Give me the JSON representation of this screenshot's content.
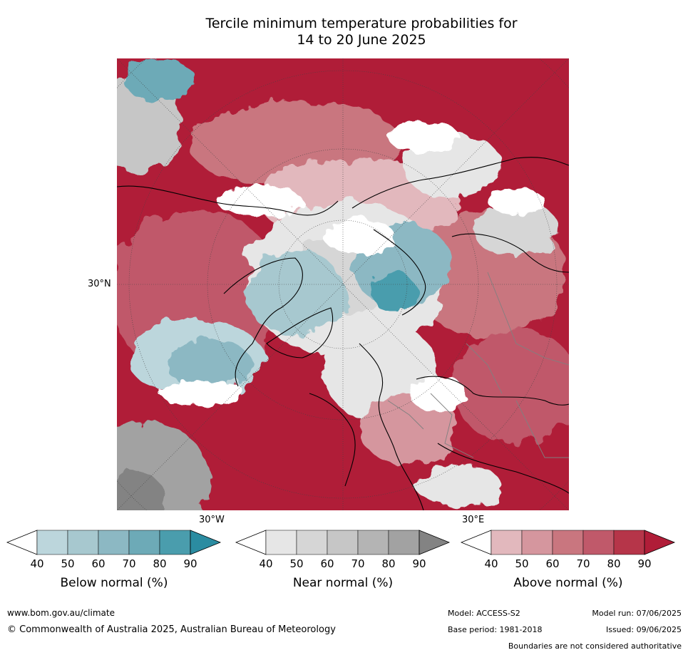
{
  "title": {
    "line1": "Tercile minimum temperature probabilities for",
    "line2": "14 to 20 June 2025"
  },
  "map": {
    "latitude_label": "30°N",
    "longitude_labels": {
      "west": "30°W",
      "east": "30°E"
    }
  },
  "colorbars": [
    {
      "id": "below",
      "label": "Below normal (%)",
      "ticks": [
        "40",
        "50",
        "60",
        "70",
        "80",
        "90"
      ],
      "colors": [
        "#ffffff",
        "#bcd6dc",
        "#a7c8cf",
        "#8cb8c3",
        "#6daab7",
        "#4a9dad",
        "#2b8ca1"
      ]
    },
    {
      "id": "near",
      "label": "Near normal (%)",
      "ticks": [
        "40",
        "50",
        "60",
        "70",
        "80",
        "90"
      ],
      "colors": [
        "#ffffff",
        "#e6e6e6",
        "#d6d6d6",
        "#c6c6c6",
        "#b4b4b4",
        "#a2a2a2",
        "#838383"
      ]
    },
    {
      "id": "above",
      "label": "Above normal (%)",
      "ticks": [
        "40",
        "50",
        "60",
        "70",
        "80",
        "90"
      ],
      "colors": [
        "#ffffff",
        "#e2b8bd",
        "#d5969e",
        "#c9767f",
        "#c0596a",
        "#b63549",
        "#b01d38"
      ]
    }
  ],
  "footer": {
    "website": "www.bom.gov.au/climate",
    "copyright": "© Commonwealth of Australia 2025, Australian Bureau of Meteorology",
    "model": "Model: ACCESS-S2",
    "base_period": "Base period: 1981-2018",
    "model_run": "Model run: 07/06/2025",
    "issued": "Issued: 09/06/2025",
    "disclaimer": "Boundaries are not considered authoritative"
  }
}
